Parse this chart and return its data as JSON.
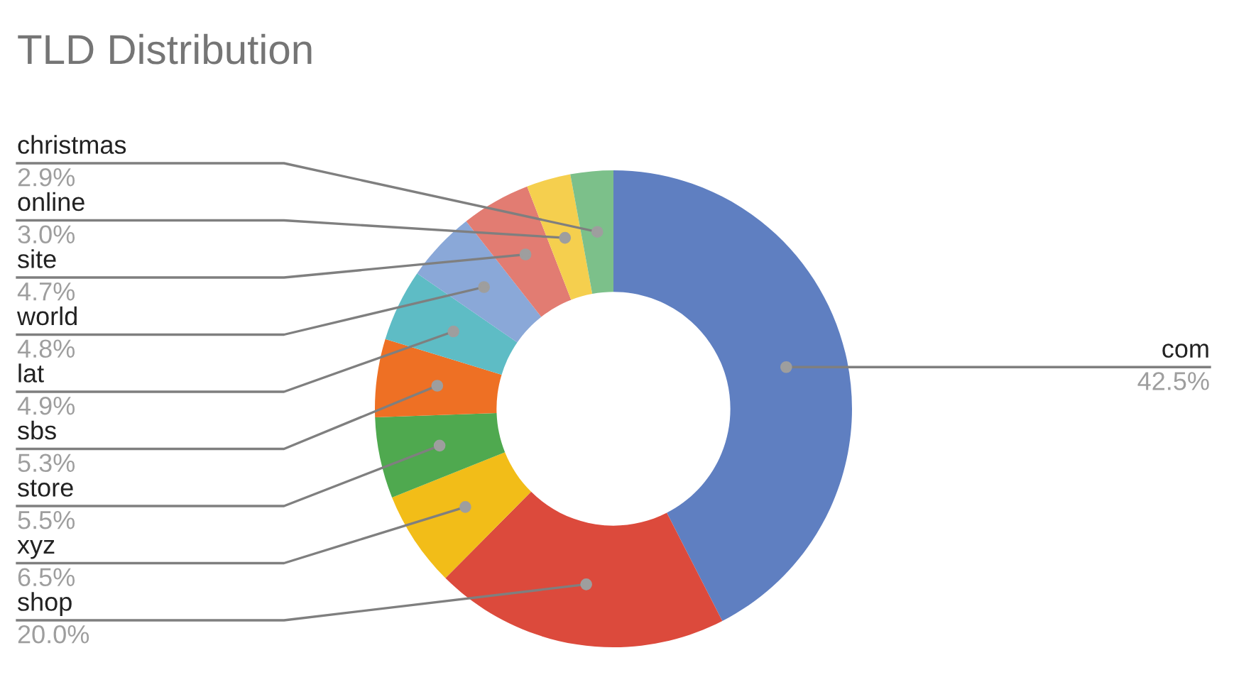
{
  "chart_data": {
    "type": "donut",
    "title": "TLD Distribution",
    "categories": [
      "com",
      "shop",
      "xyz",
      "store",
      "sbs",
      "lat",
      "world",
      "site",
      "online",
      "christmas"
    ],
    "values": [
      42.5,
      20.0,
      6.5,
      5.5,
      5.3,
      4.9,
      4.8,
      4.7,
      3.0,
      2.9
    ],
    "value_labels": [
      "42.5%",
      "20.0%",
      "6.5%",
      "5.5%",
      "5.3%",
      "4.9%",
      "4.8%",
      "4.7%",
      "3.0%",
      "2.9%"
    ],
    "colors": [
      "#5f7fc1",
      "#dc4a3c",
      "#f2bd18",
      "#4fa94f",
      "#ee7024",
      "#5ebcc5",
      "#8aa8d8",
      "#e27c72",
      "#f5cf4e",
      "#7cc08a"
    ]
  }
}
